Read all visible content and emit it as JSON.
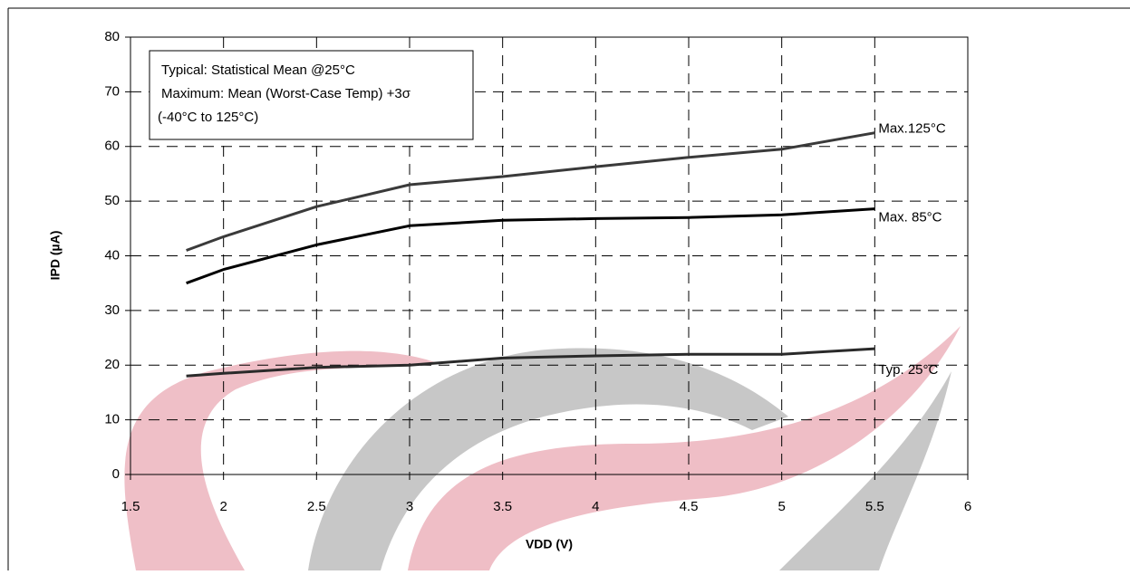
{
  "chart_data": {
    "type": "line",
    "x_label": "IPD (µA)",
    "xlabel": "VDD (V)",
    "annotation_lines": [
      "Typical: Statistical Mean @25°C",
      "Maximum: Mean (Worst-Case Temp) +3σ",
      "(-40°C to 125°C)"
    ],
    "x": [
      1.8,
      2,
      2.5,
      3,
      3.5,
      4,
      4.5,
      5,
      5.5
    ],
    "series": [
      {
        "name": "Max.125°C",
        "color": "#3a3a3a",
        "values": [
          41,
          43.5,
          49,
          53,
          54.5,
          56.3,
          58,
          59.5,
          62.5
        ]
      },
      {
        "name": "Max. 85°C",
        "color": "#000000",
        "values": [
          35,
          37.5,
          42,
          45.5,
          46.5,
          46.8,
          47,
          47.5,
          48.6
        ]
      },
      {
        "name": "Typ. 25°C",
        "color": "#2a2a2a",
        "values": [
          18,
          18.5,
          19.6,
          20,
          21.3,
          21.7,
          22,
          22,
          23
        ]
      }
    ],
    "xlim": [
      1.5,
      6
    ],
    "xticks": [
      1.5,
      2,
      2.5,
      3,
      3.5,
      4,
      4.5,
      5,
      5.5,
      6
    ],
    "ylim": [
      0,
      80
    ],
    "yticks": [
      0,
      10,
      20,
      30,
      40,
      50,
      60,
      70,
      80
    ],
    "grid": true
  }
}
